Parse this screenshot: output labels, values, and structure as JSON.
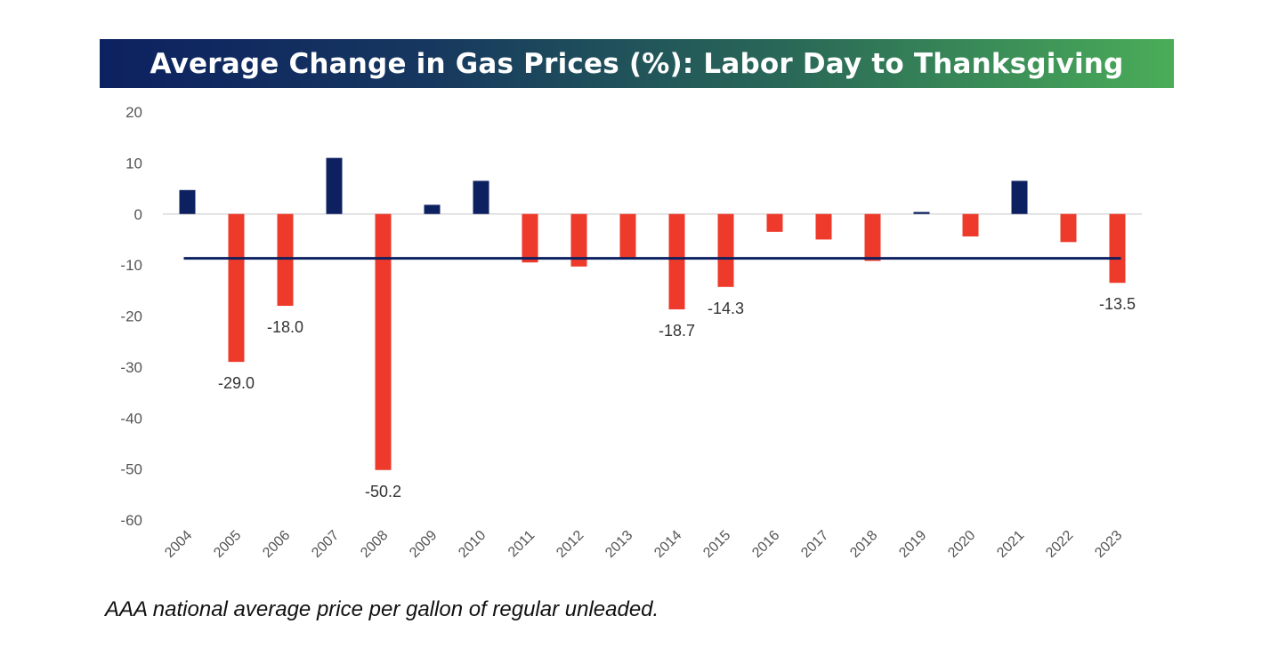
{
  "header": {
    "title": "Average Change in Gas Prices (%): Labor Day to Thanksgiving"
  },
  "footnote": "AAA national average price per gallon of regular unleaded.",
  "colors": {
    "positive": "#0d2160",
    "negative": "#ee3a2a",
    "average_line": "#0d2160"
  },
  "chart_data": {
    "type": "bar",
    "title": "Average Change in Gas Prices (%): Labor Day to Thanksgiving",
    "xlabel": "",
    "ylabel": "",
    "ylim": [
      -60,
      20
    ],
    "yticks": [
      20,
      10,
      0,
      -10,
      -20,
      -30,
      -40,
      -50,
      -60
    ],
    "grid": false,
    "categories": [
      "2004",
      "2005",
      "2006",
      "2007",
      "2008",
      "2009",
      "2010",
      "2011",
      "2012",
      "2013",
      "2014",
      "2015",
      "2016",
      "2017",
      "2018",
      "2019",
      "2020",
      "2021",
      "2022",
      "2023"
    ],
    "values": [
      4.7,
      -29.0,
      -18.0,
      11.0,
      -50.2,
      1.8,
      6.5,
      -9.5,
      -10.3,
      -8.5,
      -18.7,
      -14.3,
      -3.5,
      -5.0,
      -9.2,
      0.4,
      -4.4,
      6.5,
      -5.5,
      -13.5
    ],
    "data_labels": [
      {
        "category": "2005",
        "text": "-29.0"
      },
      {
        "category": "2006",
        "text": "-18.0"
      },
      {
        "category": "2008",
        "text": "-50.2"
      },
      {
        "category": "2014",
        "text": "-18.7"
      },
      {
        "category": "2015",
        "text": "-14.3"
      },
      {
        "category": "2023",
        "text": "-13.5"
      }
    ],
    "reference_line": {
      "value": -8.7
    }
  }
}
